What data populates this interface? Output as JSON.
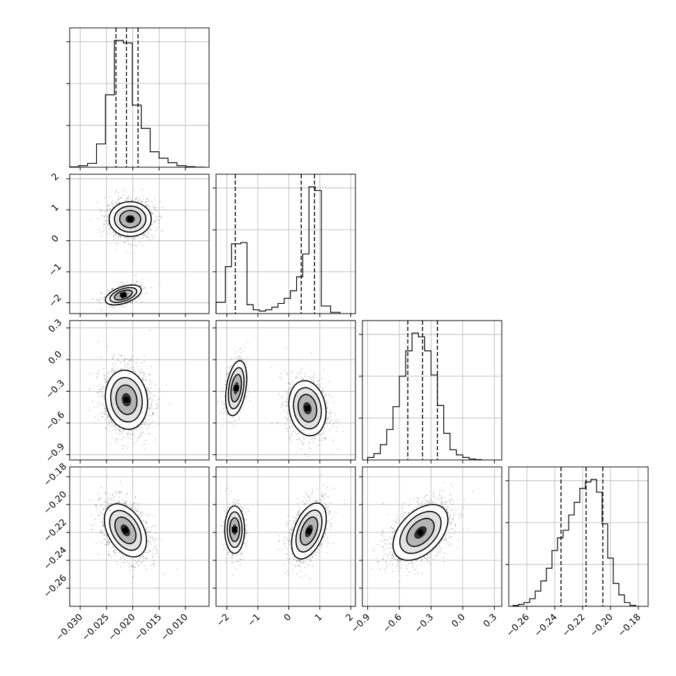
{
  "chart_data": {
    "type": "corner",
    "parameters": [
      {
        "range": [
          -0.032,
          -0.0055
        ],
        "ticks": [
          -0.03,
          -0.025,
          -0.02,
          -0.015,
          -0.01
        ],
        "tick_labels": [
          "−0.030",
          "−0.025",
          "−0.020",
          "−0.015",
          "−0.010"
        ]
      },
      {
        "range": [
          -2.35,
          2.15
        ],
        "ticks": [
          -2,
          -1,
          0,
          1,
          2
        ],
        "tick_labels": [
          "−2",
          "−1",
          "0",
          "1",
          "2"
        ]
      },
      {
        "range": [
          -0.95,
          0.37
        ],
        "ticks": [
          -0.9,
          -0.6,
          -0.3,
          0.0,
          0.3
        ],
        "tick_labels": [
          "−0.9",
          "−0.6",
          "−0.3",
          "0.0",
          "0.3"
        ]
      },
      {
        "range": [
          -0.273,
          -0.173
        ],
        "ticks": [
          -0.26,
          -0.24,
          -0.22,
          -0.2,
          -0.18
        ],
        "tick_labels": [
          "−0.26",
          "−0.24",
          "−0.22",
          "−0.20",
          "−0.18"
        ]
      }
    ],
    "histograms": [
      {
        "param": 0,
        "edges": [
          -0.032,
          -0.0303,
          -0.0286,
          -0.0269,
          -0.0252,
          -0.0235,
          -0.0218,
          -0.0201,
          -0.0184,
          -0.0167,
          -0.015,
          -0.0133,
          -0.0116,
          -0.0099,
          -0.0082,
          -0.0065
        ],
        "counts": [
          0.003,
          0.012,
          0.03,
          0.18,
          0.56,
          0.98,
          0.96,
          0.48,
          0.3,
          0.12,
          0.07,
          0.035,
          0.012,
          0.004,
          0.001
        ],
        "quantiles": [
          -0.0232,
          -0.0212,
          -0.019
        ]
      },
      {
        "param": 1,
        "edges": [
          -2.35,
          -2.05,
          -1.85,
          -1.55,
          -1.35,
          -1.15,
          -0.95,
          -0.75,
          -0.55,
          -0.35,
          -0.15,
          0.05,
          0.25,
          0.45,
          0.65,
          0.85,
          1.05,
          1.35,
          1.65
        ],
        "counts": [
          0.09,
          0.37,
          0.55,
          0.56,
          0.07,
          0.03,
          0.02,
          0.03,
          0.05,
          0.08,
          0.12,
          0.18,
          0.29,
          0.47,
          1.0,
          0.97,
          0.06,
          0.01
        ],
        "quantiles": [
          -1.73,
          0.4,
          0.83
        ]
      },
      {
        "param": 2,
        "edges": [
          -0.9,
          -0.84,
          -0.78,
          -0.72,
          -0.66,
          -0.6,
          -0.54,
          -0.48,
          -0.42,
          -0.36,
          -0.3,
          -0.24,
          -0.18,
          -0.12,
          -0.06,
          0.0,
          0.06,
          0.12,
          0.18
        ],
        "counts": [
          0.02,
          0.05,
          0.12,
          0.24,
          0.42,
          0.66,
          0.86,
          1.0,
          0.97,
          0.86,
          0.67,
          0.43,
          0.21,
          0.08,
          0.04,
          0.02,
          0.008,
          0.003
        ],
        "quantiles": [
          -0.52,
          -0.38,
          -0.24
        ]
      },
      {
        "param": 3,
        "edges": [
          -0.27,
          -0.266,
          -0.262,
          -0.258,
          -0.254,
          -0.25,
          -0.246,
          -0.242,
          -0.238,
          -0.234,
          -0.23,
          -0.226,
          -0.222,
          -0.218,
          -0.214,
          -0.21,
          -0.206,
          -0.202,
          -0.198,
          -0.194,
          -0.19,
          -0.186,
          -0.182
        ],
        "counts": [
          0.006,
          0.015,
          0.03,
          0.06,
          0.12,
          0.2,
          0.3,
          0.44,
          0.54,
          0.6,
          0.72,
          0.82,
          0.93,
          0.98,
          1.0,
          0.9,
          0.65,
          0.38,
          0.18,
          0.09,
          0.03,
          0.008
        ],
        "quantiles": [
          -0.2355,
          -0.2175,
          -0.2055
        ]
      }
    ],
    "pairs": [
      {
        "row": 1,
        "col": 0,
        "modes": [
          {
            "center": [
              -0.0205,
              0.7
            ],
            "sigma": [
              0.002,
              0.28
            ],
            "rho": 0.0,
            "weight": 0.72
          },
          {
            "center": [
              -0.0218,
              -1.75
            ],
            "sigma": [
              0.0017,
              0.16
            ],
            "rho": 0.5,
            "weight": 0.28
          }
        ]
      },
      {
        "row": 2,
        "col": 0,
        "modes": [
          {
            "center": [
              -0.0212,
              -0.38
            ],
            "sigma": [
              0.002,
              0.14
            ],
            "rho": -0.1,
            "weight": 1.0
          }
        ]
      },
      {
        "row": 2,
        "col": 1,
        "modes": [
          {
            "center": [
              -1.7,
              -0.27
            ],
            "sigma": [
              0.17,
              0.13
            ],
            "rho": 0.35,
            "weight": 0.3
          },
          {
            "center": [
              0.6,
              -0.46
            ],
            "sigma": [
              0.3,
              0.13
            ],
            "rho": -0.15,
            "weight": 0.7
          }
        ]
      },
      {
        "row": 3,
        "col": 0,
        "modes": [
          {
            "center": [
              -0.0214,
              -0.2185
            ],
            "sigma": [
              0.002,
              0.0095
            ],
            "rho": -0.4,
            "weight": 1.0
          }
        ]
      },
      {
        "row": 3,
        "col": 1,
        "modes": [
          {
            "center": [
              -1.75,
              -0.218
            ],
            "sigma": [
              0.16,
              0.0085
            ],
            "rho": 0.0,
            "weight": 0.28
          },
          {
            "center": [
              0.65,
              -0.219
            ],
            "sigma": [
              0.28,
              0.01
            ],
            "rho": 0.45,
            "weight": 0.72
          }
        ]
      },
      {
        "row": 3,
        "col": 2,
        "modes": [
          {
            "center": [
              -0.4,
              -0.22
            ],
            "sigma": [
              0.13,
              0.01
            ],
            "rho": 0.45,
            "weight": 1.0
          }
        ]
      }
    ]
  }
}
